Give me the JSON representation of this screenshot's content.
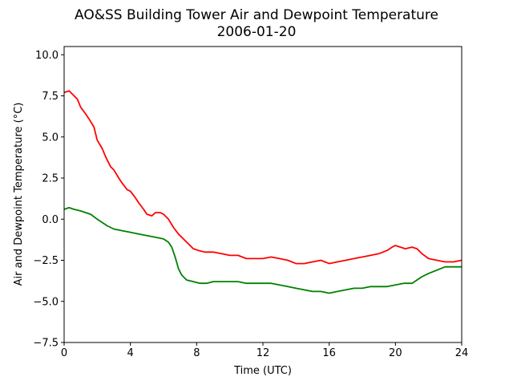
{
  "chart_data": {
    "type": "line",
    "title": "AO&SS Building Tower Air and Dewpoint Temperature",
    "subtitle": "2006-01-20",
    "xlabel": "Time (UTC)",
    "ylabel": "Air and Dewpoint Temperature (°C)",
    "xlim": [
      0,
      24
    ],
    "ylim": [
      -7.5,
      10.5
    ],
    "xticks": [
      0,
      4,
      8,
      12,
      16,
      20,
      24
    ],
    "xtick_labels": [
      "0",
      "4",
      "8",
      "12",
      "16",
      "20",
      "24"
    ],
    "yticks": [
      -7.5,
      -5.0,
      -2.5,
      0.0,
      2.5,
      5.0,
      7.5,
      10.0
    ],
    "ytick_labels": [
      "−7.5",
      "−5.0",
      "−2.5",
      "0.0",
      "2.5",
      "5.0",
      "7.5",
      "10.0"
    ],
    "grid": false,
    "legend": "none",
    "series": [
      {
        "color": "#ff0000",
        "x": [
          0,
          0.3,
          0.5,
          0.8,
          1.0,
          1.3,
          1.5,
          1.8,
          2.0,
          2.3,
          2.5,
          2.8,
          3.0,
          3.3,
          3.5,
          3.8,
          4.0,
          4.3,
          4.5,
          4.8,
          5.0,
          5.3,
          5.5,
          5.8,
          6.0,
          6.3,
          6.6,
          6.9,
          7.2,
          7.5,
          7.8,
          8.1,
          8.5,
          9.0,
          9.5,
          10.0,
          10.5,
          11.0,
          11.5,
          12.0,
          12.5,
          13.0,
          13.5,
          14.0,
          14.5,
          15.0,
          15.5,
          16.0,
          16.5,
          17.0,
          17.5,
          18.0,
          18.5,
          19.0,
          19.5,
          19.8,
          20.0,
          20.3,
          20.6,
          21.0,
          21.3,
          21.6,
          22.0,
          22.5,
          23.0,
          23.5,
          24.0
        ],
        "y": [
          7.7,
          7.8,
          7.6,
          7.3,
          6.8,
          6.4,
          6.1,
          5.6,
          4.8,
          4.3,
          3.8,
          3.2,
          3.0,
          2.5,
          2.2,
          1.8,
          1.7,
          1.3,
          1.0,
          0.6,
          0.3,
          0.2,
          0.4,
          0.4,
          0.3,
          0.0,
          -0.5,
          -0.9,
          -1.2,
          -1.5,
          -1.8,
          -1.9,
          -2.0,
          -2.0,
          -2.1,
          -2.2,
          -2.2,
          -2.4,
          -2.4,
          -2.4,
          -2.3,
          -2.4,
          -2.5,
          -2.7,
          -2.7,
          -2.6,
          -2.5,
          -2.7,
          -2.6,
          -2.5,
          -2.4,
          -2.3,
          -2.2,
          -2.1,
          -1.9,
          -1.7,
          -1.6,
          -1.7,
          -1.8,
          -1.7,
          -1.8,
          -2.1,
          -2.4,
          -2.5,
          -2.6,
          -2.6,
          -2.5
        ]
      },
      {
        "color": "#008000",
        "x": [
          0,
          0.3,
          0.6,
          1.0,
          1.3,
          1.6,
          2.0,
          2.3,
          2.6,
          3.0,
          3.5,
          4.0,
          4.5,
          5.0,
          5.5,
          6.0,
          6.3,
          6.5,
          6.7,
          6.9,
          7.1,
          7.4,
          7.8,
          8.2,
          8.6,
          9.0,
          9.5,
          10.0,
          10.5,
          11.0,
          11.5,
          12.0,
          12.5,
          13.0,
          13.5,
          14.0,
          14.5,
          15.0,
          15.5,
          16.0,
          16.5,
          17.0,
          17.5,
          18.0,
          18.5,
          19.0,
          19.5,
          20.0,
          20.5,
          21.0,
          21.3,
          21.6,
          22.0,
          22.5,
          23.0,
          23.5,
          24.0
        ],
        "y": [
          0.6,
          0.7,
          0.6,
          0.5,
          0.4,
          0.3,
          0.0,
          -0.2,
          -0.4,
          -0.6,
          -0.7,
          -0.8,
          -0.9,
          -1.0,
          -1.1,
          -1.2,
          -1.4,
          -1.7,
          -2.3,
          -3.0,
          -3.4,
          -3.7,
          -3.8,
          -3.9,
          -3.9,
          -3.8,
          -3.8,
          -3.8,
          -3.8,
          -3.9,
          -3.9,
          -3.9,
          -3.9,
          -4.0,
          -4.1,
          -4.2,
          -4.3,
          -4.4,
          -4.4,
          -4.5,
          -4.4,
          -4.3,
          -4.2,
          -4.2,
          -4.1,
          -4.1,
          -4.1,
          -4.0,
          -3.9,
          -3.9,
          -3.7,
          -3.5,
          -3.3,
          -3.1,
          -2.9,
          -2.9,
          -2.9
        ]
      }
    ]
  }
}
